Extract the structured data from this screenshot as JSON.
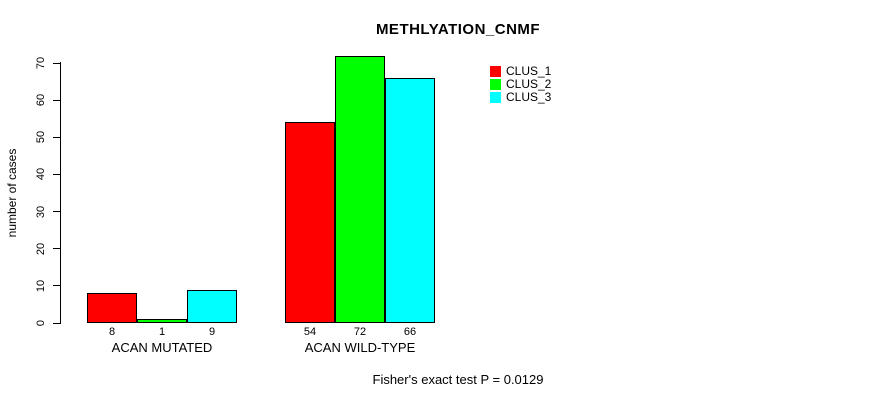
{
  "chart_data": {
    "type": "bar",
    "title": "METHLYATION_CNMF",
    "ylabel": "number of cases",
    "xlabel": "",
    "ylim": [
      0,
      70
    ],
    "yticks": [
      0,
      10,
      20,
      30,
      40,
      50,
      60,
      70
    ],
    "grid": false,
    "legend_position": "top-right",
    "categories": [
      "ACAN MUTATED",
      "ACAN WILD-TYPE"
    ],
    "series": [
      {
        "name": "CLUS_1",
        "color": "#ff0000",
        "values": [
          8,
          54
        ]
      },
      {
        "name": "CLUS_2",
        "color": "#00ff00",
        "values": [
          1,
          72
        ]
      },
      {
        "name": "CLUS_3",
        "color": "#00ffff",
        "values": [
          9,
          66
        ]
      }
    ],
    "bar_value_labels": [
      [
        "8",
        "1",
        "9"
      ],
      [
        "54",
        "72",
        "66"
      ]
    ],
    "annotation": "Fisher's exact test P = 0.0129"
  }
}
